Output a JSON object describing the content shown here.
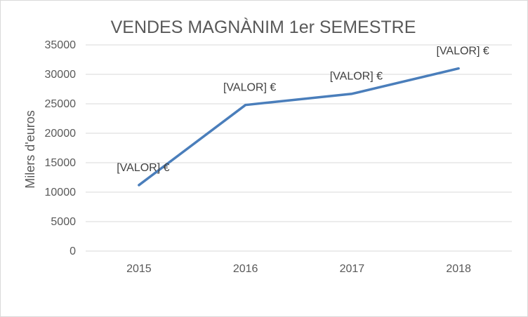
{
  "chart_data": {
    "type": "line",
    "title": "VENDES MAGNÀNIM 1er SEMESTRE",
    "xlabel": "",
    "ylabel": "Milers d'euros",
    "categories": [
      "2015",
      "2016",
      "2017",
      "2018"
    ],
    "series": [
      {
        "values": [
          11200,
          24800,
          26700,
          31000
        ],
        "color": "#4a7ebb"
      }
    ],
    "data_labels": [
      "[VALOR] €",
      "[VALOR] €",
      "[VALOR] €",
      "[VALOR] €"
    ],
    "ylim": [
      0,
      35000
    ],
    "yticks": [
      "0",
      "5000",
      "10000",
      "15000",
      "20000",
      "25000",
      "30000",
      "35000"
    ],
    "grid": true,
    "legend": "none"
  }
}
